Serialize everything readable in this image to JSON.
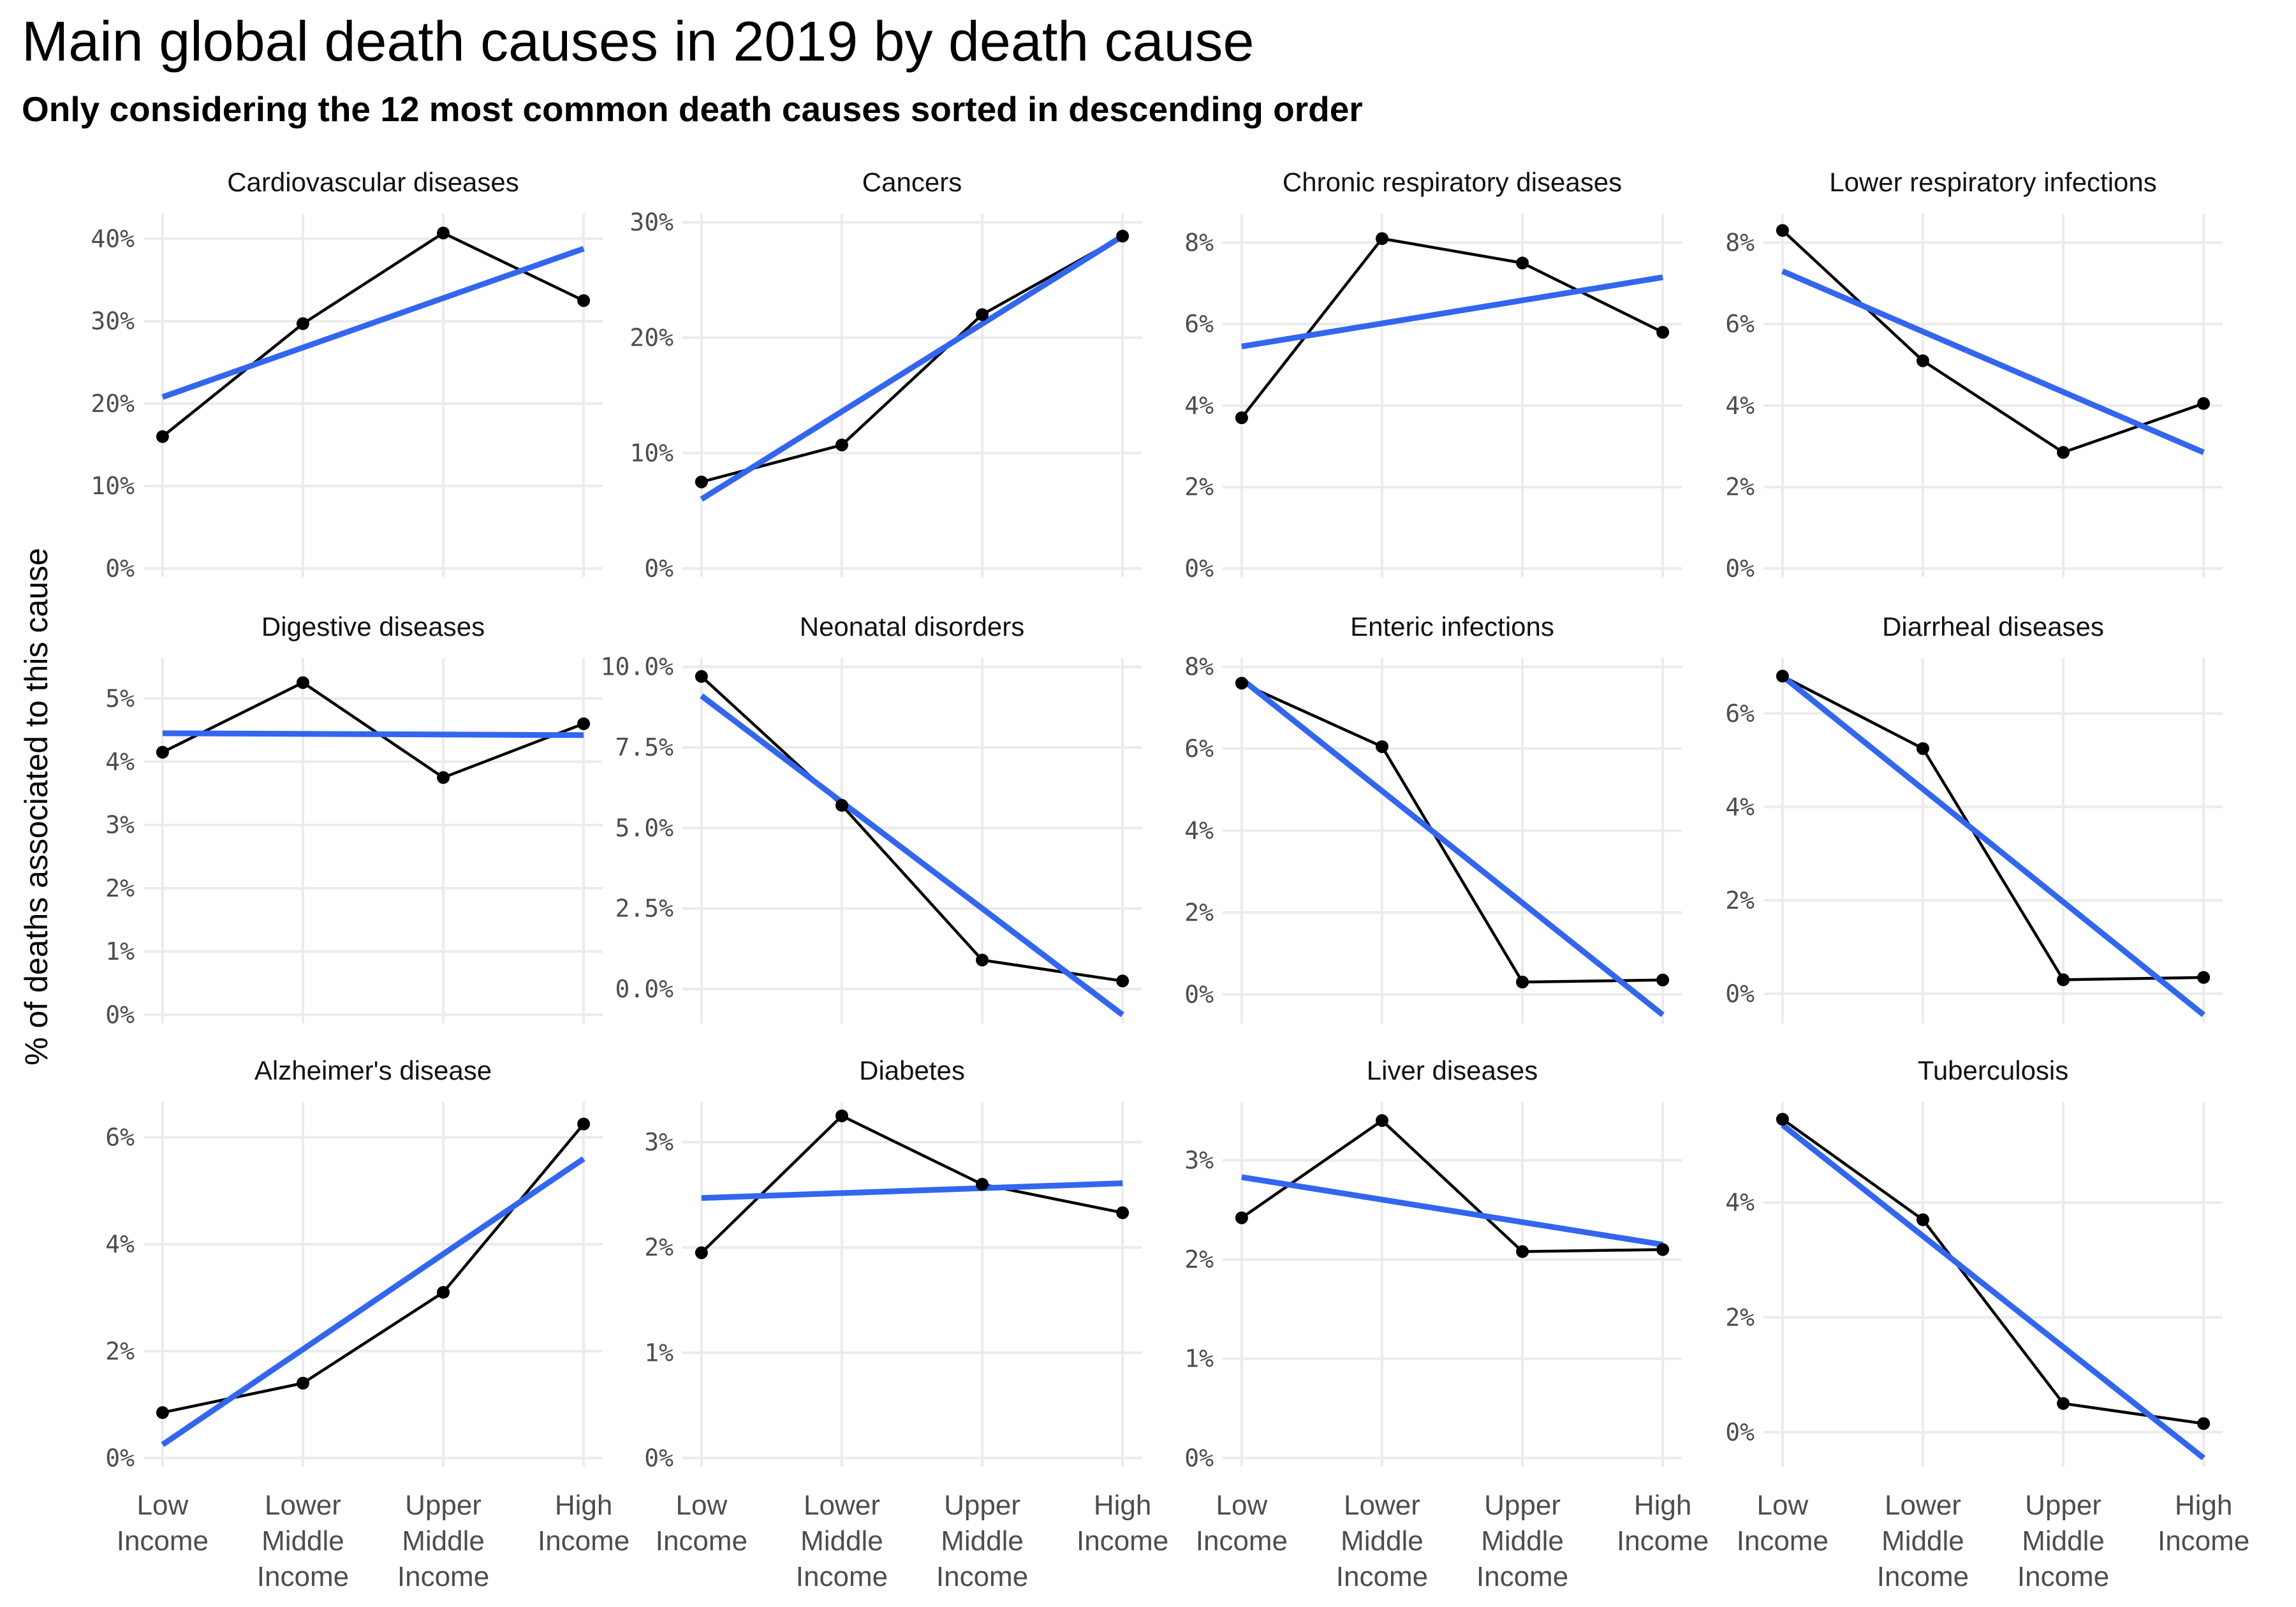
{
  "chart_data": {
    "type": "line",
    "title": "Main global death causes in 2019 by death cause",
    "subtitle": "Only considering the 12 most common death causes sorted in descending order",
    "ylabel": "% of deaths associated to this cause",
    "categories": [
      [
        "Low",
        "Income"
      ],
      [
        "Lower",
        "Middle",
        "Income"
      ],
      [
        "Upper",
        "Middle",
        "Income"
      ],
      [
        "High",
        "Income"
      ]
    ],
    "colors": {
      "observed": "#000000",
      "trend": "#3366ee",
      "grid": "#ebebeb"
    },
    "panels": [
      {
        "title": "Cardiovascular diseases",
        "values": [
          16.0,
          29.7,
          40.7,
          32.5
        ],
        "trend": [
          20.8,
          38.8
        ],
        "ylim": [
          0,
          42
        ],
        "ticks": [
          0,
          10,
          20,
          30,
          40
        ],
        "tick_labels": [
          "0%",
          "10%",
          "20%",
          "30%",
          "40%"
        ]
      },
      {
        "title": "Cancers",
        "values": [
          7.5,
          10.7,
          22.0,
          28.8
        ],
        "trend": [
          6.0,
          28.8
        ],
        "ylim": [
          0,
          30
        ],
        "ticks": [
          0,
          10,
          20,
          30
        ],
        "tick_labels": [
          "0%",
          "10%",
          "20%",
          "30%"
        ]
      },
      {
        "title": "Chronic respiratory diseases",
        "values": [
          3.7,
          8.1,
          7.5,
          5.8
        ],
        "trend": [
          5.45,
          7.15
        ],
        "ylim": [
          0,
          8.5
        ],
        "ticks": [
          0,
          2,
          4,
          6,
          8
        ],
        "tick_labels": [
          "0%",
          "2%",
          "4%",
          "6%",
          "8%"
        ]
      },
      {
        "title": "Lower respiratory infections",
        "values": [
          8.3,
          5.1,
          2.85,
          4.05
        ],
        "trend": [
          7.3,
          2.85
        ],
        "ylim": [
          0,
          8.5
        ],
        "ticks": [
          0,
          2,
          4,
          6,
          8
        ],
        "tick_labels": [
          "0%",
          "2%",
          "4%",
          "6%",
          "8%"
        ]
      },
      {
        "title": "Digestive diseases",
        "values": [
          4.15,
          5.25,
          3.75,
          4.6
        ],
        "trend": [
          4.45,
          4.42
        ],
        "ylim": [
          0,
          5.5
        ],
        "ticks": [
          0,
          1,
          2,
          3,
          4,
          5
        ],
        "tick_labels": [
          "0%",
          "1%",
          "2%",
          "3%",
          "4%",
          "5%"
        ]
      },
      {
        "title": "Neonatal disorders",
        "values": [
          9.7,
          5.7,
          0.9,
          0.25
        ],
        "trend": [
          9.1,
          -0.8
        ],
        "ylim": [
          -0.8,
          10.0
        ],
        "ticks": [
          0,
          2.5,
          5,
          7.5,
          10
        ],
        "tick_labels": [
          "0.0%",
          "2.5%",
          "5.0%",
          "7.5%",
          "10.0%"
        ]
      },
      {
        "title": "Enteric infections",
        "values": [
          7.6,
          6.05,
          0.3,
          0.35
        ],
        "trend": [
          7.7,
          -0.5
        ],
        "ylim": [
          -0.5,
          8.0
        ],
        "ticks": [
          0,
          2,
          4,
          6,
          8
        ],
        "tick_labels": [
          "0%",
          "2%",
          "4%",
          "6%",
          "8%"
        ]
      },
      {
        "title": "Diarrheal diseases",
        "values": [
          6.8,
          5.25,
          0.3,
          0.35
        ],
        "trend": [
          6.8,
          -0.45
        ],
        "ylim": [
          -0.45,
          7.0
        ],
        "ticks": [
          0,
          2,
          4,
          6
        ],
        "tick_labels": [
          "0%",
          "2%",
          "4%",
          "6%"
        ]
      },
      {
        "title": "Alzheimer's disease",
        "values": [
          0.85,
          1.4,
          3.1,
          6.25
        ],
        "trend": [
          0.25,
          5.6
        ],
        "ylim": [
          0,
          6.5
        ],
        "ticks": [
          0,
          2,
          4,
          6
        ],
        "tick_labels": [
          "0%",
          "2%",
          "4%",
          "6%"
        ]
      },
      {
        "title": "Diabetes",
        "values": [
          1.95,
          3.25,
          2.6,
          2.33
        ],
        "trend": [
          2.47,
          2.61
        ],
        "ylim": [
          0,
          3.3
        ],
        "ticks": [
          0,
          1,
          2,
          3
        ],
        "tick_labels": [
          "0%",
          "1%",
          "2%",
          "3%"
        ]
      },
      {
        "title": "Liver diseases",
        "values": [
          2.42,
          3.4,
          2.08,
          2.1
        ],
        "trend": [
          2.83,
          2.15
        ],
        "ylim": [
          0,
          3.5
        ],
        "ticks": [
          0,
          1,
          2,
          3
        ],
        "tick_labels": [
          "0%",
          "1%",
          "2%",
          "3%"
        ]
      },
      {
        "title": "Tuberculosis",
        "values": [
          5.45,
          3.7,
          0.5,
          0.15
        ],
        "trend": [
          5.35,
          -0.45
        ],
        "ylim": [
          -0.45,
          5.6
        ],
        "ticks": [
          0,
          2,
          4
        ],
        "tick_labels": [
          "0%",
          "2%",
          "4%"
        ]
      }
    ]
  }
}
